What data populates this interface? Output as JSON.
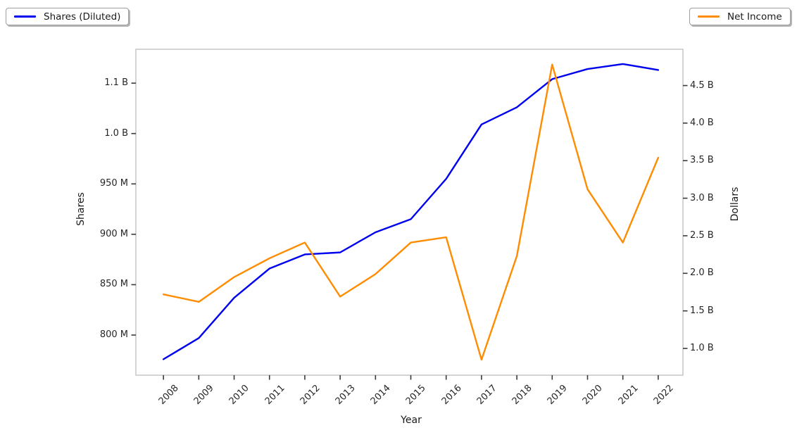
{
  "figure": {
    "background": "#ffffff",
    "legend_left": {
      "label": "Shares (Diluted)",
      "color": "#0000f0"
    },
    "legend_right": {
      "label": "Net Income",
      "color": "#ff8c00"
    }
  },
  "chart_data": {
    "type": "line",
    "title": "",
    "x": [
      2008,
      2009,
      2010,
      2011,
      2012,
      2013,
      2014,
      2015,
      2016,
      2017,
      2018,
      2019,
      2020,
      2021,
      2022
    ],
    "series": [
      {
        "name": "Shares (Diluted)",
        "axis": "left",
        "unit": "shares (millions)",
        "color": "#0000f0",
        "values": [
          776,
          797,
          837,
          866,
          880,
          882,
          902,
          915,
          955,
          1009,
          1026,
          1054,
          1064,
          1069,
          1063
        ]
      },
      {
        "name": "Net Income",
        "axis": "right",
        "unit": "dollars (billions)",
        "color": "#ff8c00",
        "values": [
          1.72,
          1.62,
          1.95,
          2.2,
          2.41,
          1.69,
          1.99,
          2.41,
          2.48,
          0.85,
          2.23,
          4.78,
          3.12,
          2.41,
          3.54
        ]
      }
    ],
    "x_axis": {
      "label": "Year",
      "ticks": [
        "2008",
        "2009",
        "2010",
        "2011",
        "2012",
        "2013",
        "2014",
        "2015",
        "2016",
        "2017",
        "2018",
        "2019",
        "2020",
        "2021",
        "2022"
      ],
      "range": [
        2007.22,
        2022.7
      ]
    },
    "left_axis": {
      "label": "Shares",
      "tick_labels": [
        "800 M",
        "850 M",
        "900 M",
        "950 M",
        "1.0 B",
        "1.1 B"
      ],
      "tick_values_millions": [
        800,
        850,
        900,
        950,
        1000,
        1050
      ],
      "range_millions": [
        760.2,
        1083.6
      ]
    },
    "right_axis": {
      "label": "Dollars",
      "tick_labels": [
        "1.0 B",
        "1.5 B",
        "2.0 B",
        "2.5 B",
        "3.0 B",
        "3.5 B",
        "4.0 B",
        "4.5 B"
      ],
      "tick_values_billions": [
        1.0,
        1.5,
        2.0,
        2.5,
        3.0,
        3.5,
        4.0,
        4.5
      ],
      "range_billions": [
        0.644,
        4.983
      ]
    },
    "legend_position": [
      "upper left (outside axes)",
      "upper right (outside axes)"
    ],
    "grid": false
  }
}
